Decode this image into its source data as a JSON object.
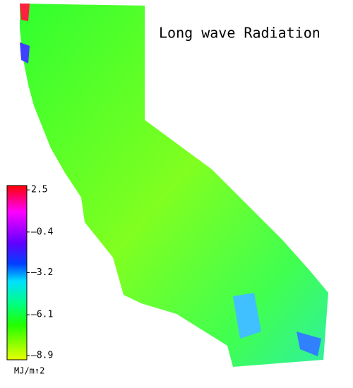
{
  "title": "Long wave Radiation",
  "colorbar": {
    "unit": "MJ/m↑2",
    "lim": [
      -9.2,
      2.8
    ],
    "ticks": [
      {
        "value": 2.5,
        "label": "2.5"
      },
      {
        "value": -0.4,
        "label": "–0.4"
      },
      {
        "value": -3.2,
        "label": "–3.2"
      },
      {
        "value": -6.1,
        "label": "–6.1"
      },
      {
        "value": -8.9,
        "label": "–8.9"
      }
    ]
  }
}
